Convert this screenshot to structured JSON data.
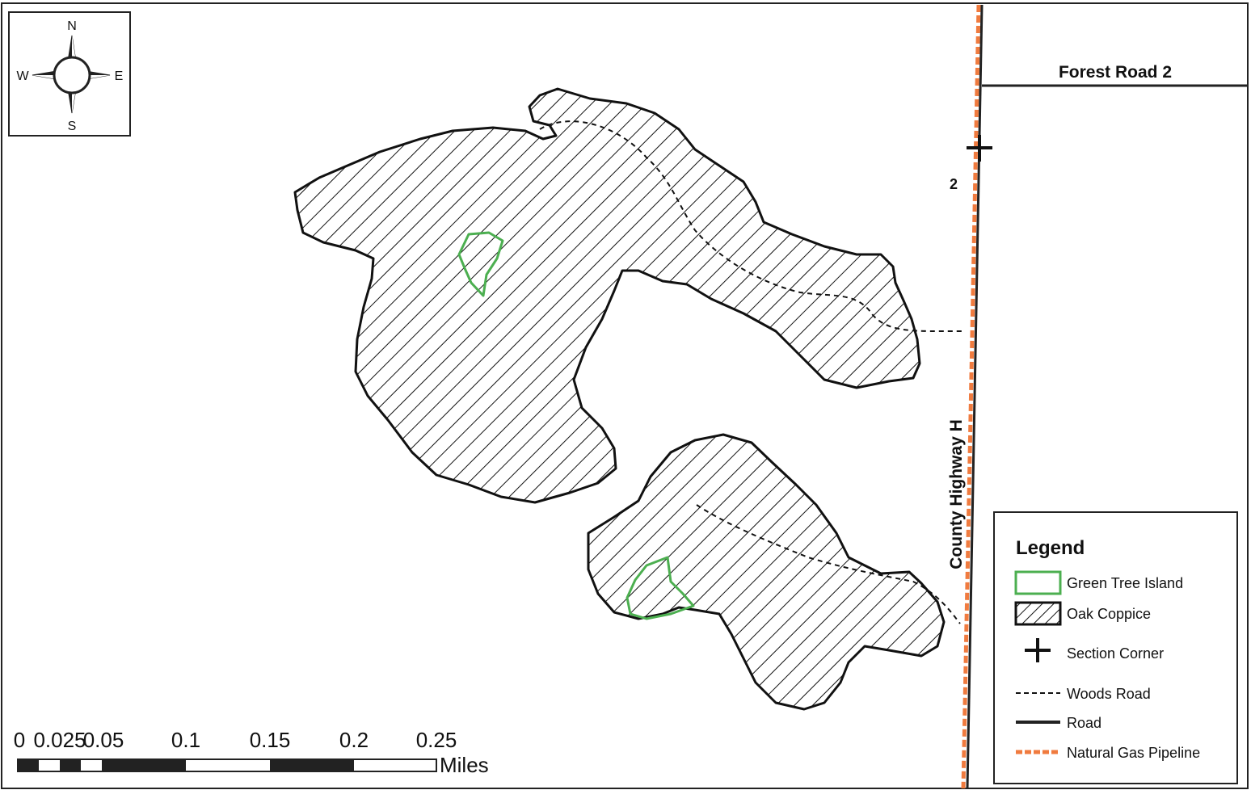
{
  "compass": {
    "north": "N",
    "south": "S",
    "east": "E",
    "west": "W"
  },
  "roads": {
    "forest_road": "Forest Road 2",
    "county_highway": "County Highway H"
  },
  "section_number": "2",
  "legend": {
    "title": "Legend",
    "items": [
      {
        "label": "Green Tree Island",
        "symbol": "green-outline",
        "color": "#4caf50"
      },
      {
        "label": "Oak Coppice",
        "symbol": "hatched-fill",
        "color": "#111111"
      },
      {
        "label": "Section Corner",
        "symbol": "cross"
      },
      {
        "label": "Woods Road",
        "symbol": "dashed-line"
      },
      {
        "label": "Road",
        "symbol": "solid-line"
      },
      {
        "label": "Natural Gas Pipeline",
        "symbol": "orange-dashed-line",
        "color": "#f07b3f"
      }
    ]
  },
  "scale_bar": {
    "ticks": [
      "0",
      "0.025",
      "0.05",
      "0.1",
      "0.15",
      "0.2",
      "0.25"
    ],
    "unit": "Miles"
  },
  "colors": {
    "green_tree_island": "#4caf50",
    "pipeline": "#f07b3f",
    "ink": "#111111"
  }
}
